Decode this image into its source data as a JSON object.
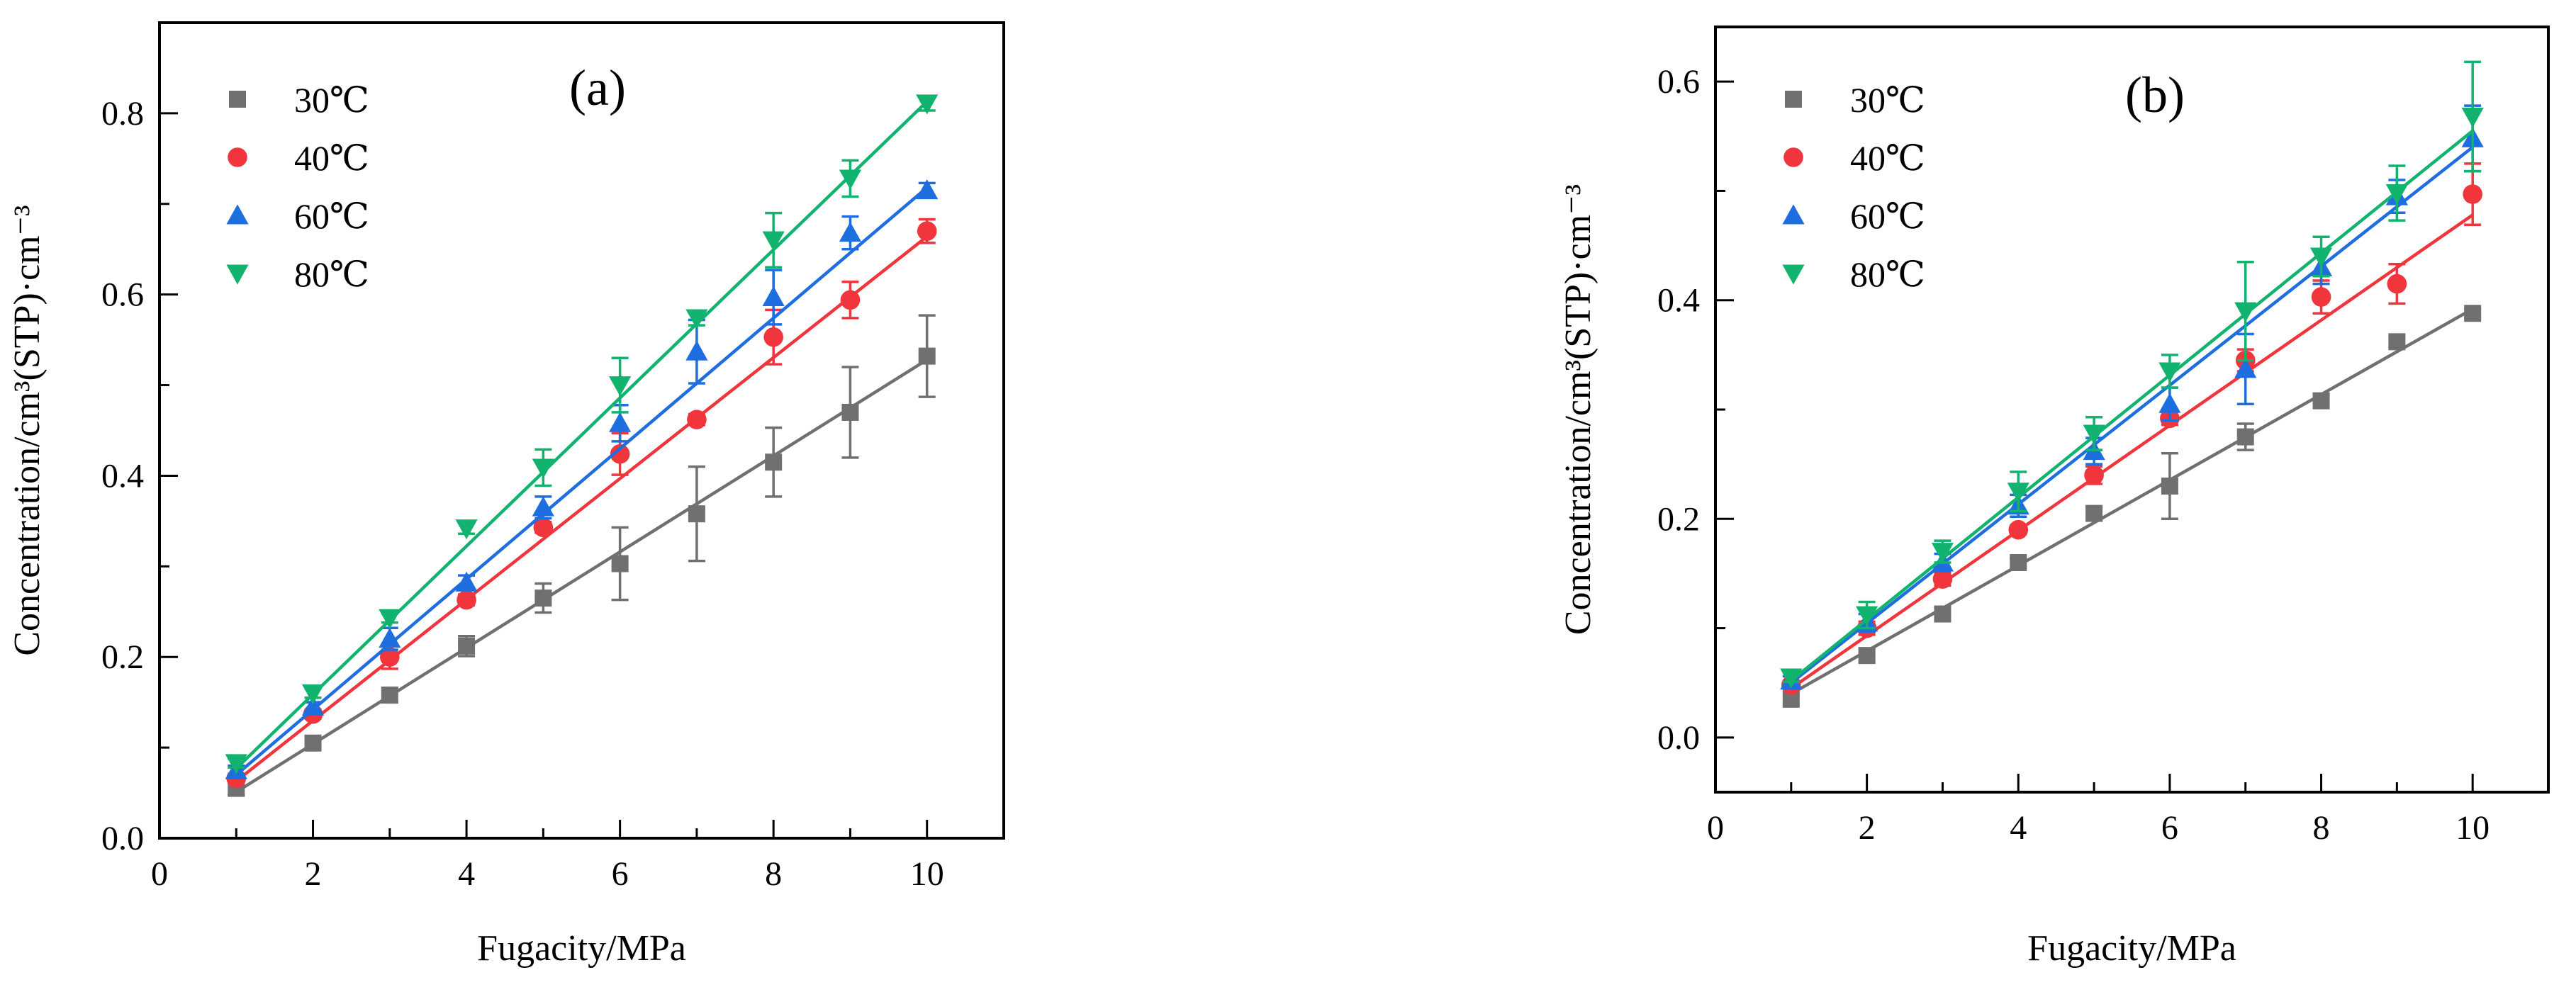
{
  "chart_data": [
    {
      "type": "scatter",
      "panel_label": "(a)",
      "xlabel": "Fugacity/MPa",
      "ylabel": "Concentration/cm³(STP)·cm⁻³",
      "xlim": [
        0,
        11
      ],
      "ylim": [
        0,
        0.9
      ],
      "xticks": [
        0,
        2,
        4,
        6,
        8,
        10
      ],
      "yticks": [
        0.0,
        0.2,
        0.4,
        0.6,
        0.8
      ],
      "ytick_labels": [
        "0.0",
        "0.2",
        "0.4",
        "0.6",
        "0.8"
      ],
      "legend_position": "top-left",
      "fit_lines": true,
      "series": [
        {
          "name": "30℃",
          "color": "#707070",
          "marker": "square",
          "x": [
            1,
            2,
            3,
            4,
            5,
            6,
            7,
            8,
            9,
            10
          ],
          "y": [
            0.055,
            0.105,
            0.158,
            0.212,
            0.265,
            0.303,
            0.358,
            0.415,
            0.47,
            0.532
          ],
          "err": [
            0.007,
            0.005,
            0.008,
            0.011,
            0.016,
            0.04,
            0.052,
            0.038,
            0.05,
            0.045
          ],
          "fit": [
            0.051,
            0.528
          ]
        },
        {
          "name": "40℃",
          "color": "#f0353d",
          "marker": "circle",
          "x": [
            1,
            2,
            3,
            4,
            5,
            6,
            7,
            8,
            9,
            10
          ],
          "y": [
            0.066,
            0.137,
            0.2,
            0.263,
            0.343,
            0.424,
            0.462,
            0.553,
            0.594,
            0.67
          ],
          "err": [
            0.005,
            0.005,
            0.013,
            0.006,
            0.006,
            0.023,
            0.006,
            0.03,
            0.02,
            0.013
          ],
          "fit": [
            0.063,
            0.664
          ]
        },
        {
          "name": "60℃",
          "color": "#1f6ee0",
          "marker": "triangle-up",
          "x": [
            1,
            2,
            3,
            4,
            5,
            6,
            7,
            8,
            9,
            10
          ],
          "y": [
            0.075,
            0.145,
            0.22,
            0.282,
            0.365,
            0.458,
            0.537,
            0.597,
            0.668,
            0.715
          ],
          "err": [
            0.005,
            0.005,
            0.012,
            0.008,
            0.012,
            0.02,
            0.035,
            0.03,
            0.018,
            0.008
          ],
          "fit": [
            0.07,
            0.718
          ]
        },
        {
          "name": "80℃",
          "color": "#11b36e",
          "marker": "triangle-down",
          "x": [
            1,
            2,
            3,
            4,
            5,
            6,
            7,
            8,
            9,
            10
          ],
          "y": [
            0.083,
            0.16,
            0.243,
            0.342,
            0.409,
            0.5,
            0.574,
            0.66,
            0.728,
            0.811
          ],
          "err": [
            0.005,
            0.005,
            0.005,
            0.006,
            0.02,
            0.03,
            0.008,
            0.03,
            0.02,
            0.008
          ],
          "fit": [
            0.077,
            0.813
          ]
        }
      ]
    },
    {
      "type": "scatter",
      "panel_label": "(b)",
      "xlabel": "Fugacity/MPa",
      "ylabel": "Concentration/cm³(STP)·cm⁻³",
      "xlim": [
        0,
        11
      ],
      "ylim": [
        -0.05,
        0.65
      ],
      "xticks": [
        0,
        2,
        4,
        6,
        8,
        10
      ],
      "yticks": [
        0.0,
        0.2,
        0.4,
        0.6
      ],
      "ytick_labels": [
        "0.0",
        "0.2",
        "0.4",
        "0.6"
      ],
      "legend_position": "top-left",
      "fit_lines": true,
      "series": [
        {
          "name": "30℃",
          "color": "#707070",
          "marker": "square",
          "x": [
            1,
            2,
            3,
            4,
            5,
            6,
            7,
            8,
            9,
            10
          ],
          "y": [
            0.035,
            0.075,
            0.113,
            0.16,
            0.205,
            0.23,
            0.275,
            0.308,
            0.362,
            0.388
          ],
          "err": [
            0.005,
            0.006,
            0.006,
            0.004,
            0.006,
            0.03,
            0.012,
            0.006,
            0.005,
            0.004
          ],
          "fit": [
            0.04,
            0.392
          ]
        },
        {
          "name": "40℃",
          "color": "#f0353d",
          "marker": "circle",
          "x": [
            1,
            2,
            3,
            4,
            5,
            6,
            7,
            8,
            9,
            10
          ],
          "y": [
            0.048,
            0.1,
            0.145,
            0.19,
            0.24,
            0.292,
            0.345,
            0.403,
            0.415,
            0.497
          ],
          "err": [
            0.004,
            0.006,
            0.006,
            0.004,
            0.008,
            0.006,
            0.01,
            0.015,
            0.018,
            0.028
          ],
          "fit": [
            0.045,
            0.478
          ]
        },
        {
          "name": "60℃",
          "color": "#1f6ee0",
          "marker": "triangle-up",
          "x": [
            1,
            2,
            3,
            4,
            5,
            6,
            7,
            8,
            9,
            10
          ],
          "y": [
            0.052,
            0.105,
            0.16,
            0.212,
            0.262,
            0.305,
            0.337,
            0.43,
            0.495,
            0.548
          ],
          "err": [
            0.004,
            0.008,
            0.008,
            0.01,
            0.012,
            0.015,
            0.032,
            0.015,
            0.015,
            0.03
          ],
          "fit": [
            0.05,
            0.54
          ]
        },
        {
          "name": "80℃",
          "color": "#11b36e",
          "marker": "triangle-down",
          "x": [
            1,
            2,
            3,
            4,
            5,
            6,
            7,
            8,
            9,
            10
          ],
          "y": [
            0.055,
            0.112,
            0.17,
            0.225,
            0.278,
            0.335,
            0.39,
            0.44,
            0.498,
            0.568
          ],
          "err": [
            0.004,
            0.012,
            0.01,
            0.018,
            0.015,
            0.015,
            0.045,
            0.018,
            0.025,
            0.05
          ],
          "fit": [
            0.052,
            0.555
          ]
        }
      ]
    }
  ]
}
